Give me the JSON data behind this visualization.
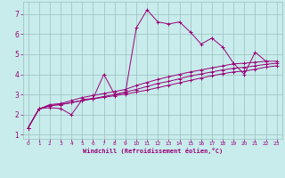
{
  "xlabel": "Windchill (Refroidissement éolien,°C)",
  "bg_color": "#c8ecec",
  "grid_color": "#9bbfbf",
  "line_color": "#990077",
  "xlim": [
    -0.5,
    23.5
  ],
  "ylim": [
    0.8,
    7.6
  ],
  "xticks": [
    0,
    1,
    2,
    3,
    4,
    5,
    6,
    7,
    8,
    9,
    10,
    11,
    12,
    13,
    14,
    15,
    16,
    17,
    18,
    19,
    20,
    21,
    22,
    23
  ],
  "yticks": [
    1,
    2,
    3,
    4,
    5,
    6,
    7
  ],
  "series1_x": [
    0,
    1,
    2,
    3,
    4,
    5,
    6,
    7,
    8,
    9,
    10,
    11,
    12,
    13,
    14,
    15,
    16,
    17,
    18,
    19,
    20,
    21,
    22
  ],
  "series1_y": [
    1.35,
    2.3,
    2.35,
    2.3,
    2.0,
    2.75,
    2.8,
    4.0,
    3.0,
    3.1,
    6.3,
    7.2,
    6.6,
    6.5,
    6.6,
    6.1,
    5.5,
    5.8,
    5.35,
    4.55,
    4.0,
    5.1,
    4.65
  ],
  "series2_x": [
    0,
    1,
    2,
    3,
    4,
    5,
    6,
    7,
    8,
    9,
    10,
    11,
    12,
    13,
    14,
    15,
    16,
    17,
    18,
    19,
    20,
    21,
    22,
    23
  ],
  "series2_y": [
    1.35,
    2.28,
    2.5,
    2.55,
    2.7,
    2.85,
    2.95,
    3.05,
    3.15,
    3.25,
    3.45,
    3.6,
    3.75,
    3.88,
    4.0,
    4.12,
    4.22,
    4.32,
    4.42,
    4.52,
    4.55,
    4.6,
    4.65,
    4.65
  ],
  "series3_x": [
    0,
    1,
    2,
    3,
    4,
    5,
    6,
    7,
    8,
    9,
    10,
    11,
    12,
    13,
    14,
    15,
    16,
    17,
    18,
    19,
    20,
    21,
    22,
    23
  ],
  "series3_y": [
    1.35,
    2.28,
    2.45,
    2.5,
    2.6,
    2.7,
    2.8,
    2.9,
    3.0,
    3.12,
    3.25,
    3.4,
    3.55,
    3.65,
    3.78,
    3.92,
    4.02,
    4.12,
    4.22,
    4.3,
    4.35,
    4.42,
    4.5,
    4.55
  ],
  "series4_x": [
    0,
    1,
    2,
    3,
    4,
    5,
    6,
    7,
    8,
    9,
    10,
    11,
    12,
    13,
    14,
    15,
    16,
    17,
    18,
    19,
    20,
    21,
    22,
    23
  ],
  "series4_y": [
    1.35,
    2.28,
    2.45,
    2.5,
    2.6,
    2.7,
    2.78,
    2.86,
    2.94,
    3.02,
    3.12,
    3.22,
    3.34,
    3.46,
    3.58,
    3.7,
    3.82,
    3.93,
    4.03,
    4.12,
    4.16,
    4.25,
    4.36,
    4.42
  ]
}
